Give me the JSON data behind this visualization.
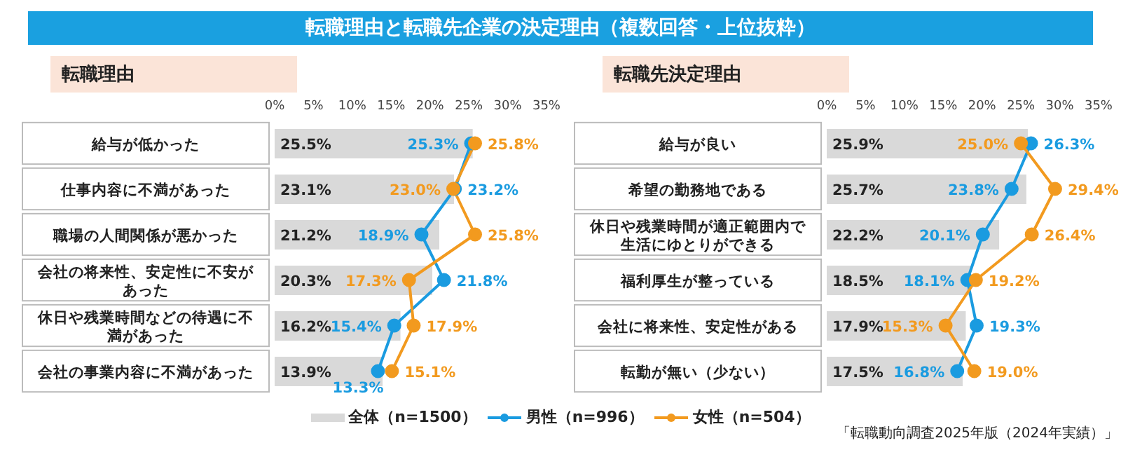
{
  "chart_data": [
    {
      "type": "bar",
      "orientation": "horizontal",
      "title": "転職理由と転職先企業の決定理由（複数回答・上位抜粋）",
      "subtitle": "転職理由",
      "categories": [
        "給与が低かった",
        "仕事内容に不満があった",
        "職場の人間関係が悪かった",
        "会社の将来性、安定性に不安があった",
        "休日や残業時間などの待遇に不満があった",
        "会社の事業内容に不満があった"
      ],
      "series": [
        {
          "name": "全体（n=1500）",
          "color": "#d9d9d9",
          "values": [
            25.5,
            23.1,
            21.2,
            20.3,
            16.2,
            13.9
          ],
          "value_labels": [
            "25.5%",
            "23.1%",
            "21.2%",
            "20.3%",
            "16.2%",
            "13.9%"
          ]
        },
        {
          "type": "line",
          "name": "男性（n=996）",
          "color": "#1a9be0",
          "values": [
            25.3,
            23.2,
            18.9,
            21.8,
            15.4,
            13.3
          ],
          "value_labels": [
            "25.3%",
            "23.2%",
            "18.9%",
            "21.8%",
            "15.4%",
            "13.3%"
          ]
        },
        {
          "type": "line",
          "name": "女性（n=504）",
          "color": "#f29a1f",
          "values": [
            25.8,
            23.0,
            25.8,
            17.3,
            17.9,
            15.1
          ],
          "value_labels": [
            "25.8%",
            "23.0%",
            "25.8%",
            "17.3%",
            "17.9%",
            "15.1%"
          ]
        }
      ],
      "xlim": [
        0,
        35
      ],
      "xticks": [
        {
          "value": 0,
          "label": "0%"
        },
        {
          "value": 5,
          "label": "5%"
        },
        {
          "value": 10,
          "label": "10%"
        },
        {
          "value": 15,
          "label": "15%"
        },
        {
          "value": 20,
          "label": "20%"
        },
        {
          "value": 25,
          "label": "25%"
        },
        {
          "value": 30,
          "label": "30%"
        },
        {
          "value": 35,
          "label": "35%"
        }
      ],
      "marker": "circle",
      "legend": "bottom"
    },
    {
      "type": "bar",
      "orientation": "horizontal",
      "subtitle": "転職先決定理由",
      "categories": [
        "給与が良い",
        "希望の勤務地である",
        "休日や残業時間が適正範囲内で生活にゆとりができる",
        "福利厚生が整っている",
        "会社に将来性、安定性がある",
        "転勤が無い（少ない）"
      ],
      "series": [
        {
          "color": "#d9d9d9",
          "values": [
            25.9,
            25.7,
            22.2,
            18.5,
            17.9,
            17.5
          ],
          "value_labels": [
            "25.9%",
            "25.7%",
            "22.2%",
            "18.5%",
            "17.9%",
            "17.5%"
          ]
        },
        {
          "type": "line",
          "color": "#1a9be0",
          "values": [
            26.3,
            23.8,
            20.1,
            18.1,
            19.3,
            16.8
          ],
          "value_labels": [
            "26.3%",
            "23.8%",
            "20.1%",
            "18.1%",
            "19.3%",
            "16.8%"
          ]
        },
        {
          "type": "line",
          "color": "#f29a1f",
          "values": [
            25.0,
            29.4,
            26.4,
            19.2,
            15.3,
            19.0
          ],
          "value_labels": [
            "25.0%",
            "29.4%",
            "26.4%",
            "19.2%",
            "15.3%",
            "19.0%"
          ]
        }
      ],
      "xlim": [
        0,
        35
      ],
      "xticks": [
        {
          "value": 0,
          "label": "0%"
        },
        {
          "value": 5,
          "label": "5%"
        },
        {
          "value": 10,
          "label": "10%"
        },
        {
          "value": 15,
          "label": "15%"
        },
        {
          "value": 20,
          "label": "20%"
        },
        {
          "value": 25,
          "label": "25%"
        },
        {
          "value": 30,
          "label": "30%"
        },
        {
          "value": 35,
          "label": "35%"
        }
      ],
      "marker": "circle",
      "annotations": [
        "「転職動向調査2025年版（2024年実績）」"
      ]
    }
  ]
}
